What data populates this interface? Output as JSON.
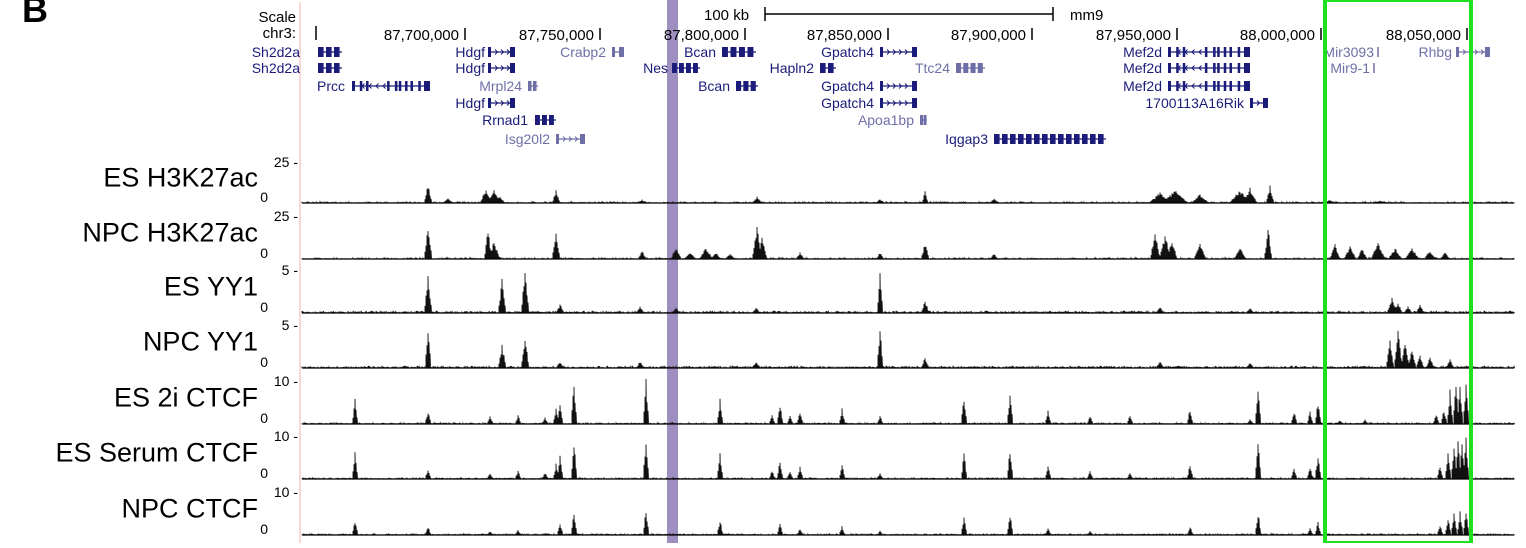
{
  "panel_label": "B",
  "ruler": {
    "scale_label": "Scale",
    "chrom_label": "chr3:",
    "scalebar_label": "100 kb",
    "assembly": "mm9",
    "positions": [
      "87,700,000",
      "87,750,000",
      "87,800,000",
      "87,850,000",
      "87,900,000",
      "87,950,000",
      "88,000,000",
      "88,050,000"
    ]
  },
  "genes": [
    {
      "name": "Sh2d2a",
      "color": "#1b1b7a",
      "row": 0,
      "label_x": 300,
      "gene_x1": 318,
      "gene_x2": 342,
      "shape": "blocks"
    },
    {
      "name": "Sh2d2a",
      "color": "#1b1b7a",
      "row": 1,
      "label_x": 300,
      "gene_x1": 318,
      "gene_x2": 342,
      "shape": "blocks"
    },
    {
      "name": "Prcc",
      "color": "#1b1b7a",
      "row": 2,
      "label_x": 345,
      "gene_x1": 352,
      "gene_x2": 430,
      "shape": "intron"
    },
    {
      "name": "Hdgf",
      "color": "#1b1b7a",
      "row": 0,
      "label_x": 485,
      "gene_x1": 488,
      "gene_x2": 515,
      "shape": "arrow"
    },
    {
      "name": "Hdgf",
      "color": "#1b1b7a",
      "row": 1,
      "label_x": 485,
      "gene_x1": 488,
      "gene_x2": 515,
      "shape": "arrow"
    },
    {
      "name": "Mrpl24",
      "color": "#6f6fa8",
      "row": 2,
      "label_x": 522,
      "gene_x1": 528,
      "gene_x2": 538,
      "shape": "blocks"
    },
    {
      "name": "Hdgf",
      "color": "#1b1b7a",
      "row": 3,
      "label_x": 485,
      "gene_x1": 488,
      "gene_x2": 515,
      "shape": "arrow"
    },
    {
      "name": "Rrnad1",
      "color": "#1b1b7a",
      "row": 4,
      "label_x": 528,
      "gene_x1": 535,
      "gene_x2": 556,
      "shape": "blocks"
    },
    {
      "name": "Isg20l2",
      "color": "#6f6fa8",
      "row": 5,
      "label_x": 550,
      "gene_x1": 556,
      "gene_x2": 585,
      "shape": "arrow"
    },
    {
      "name": "Crabp2",
      "color": "#6f6fa8",
      "row": 0,
      "label_x": 606,
      "gene_x1": 612,
      "gene_x2": 624,
      "shape": "arrow"
    },
    {
      "name": "Nes",
      "color": "#1b1b7a",
      "row": 1,
      "label_x": 668,
      "gene_x1": 672,
      "gene_x2": 700,
      "shape": "blocks"
    },
    {
      "name": "Bcan",
      "color": "#1b1b7a",
      "row": 0,
      "label_x": 716,
      "gene_x1": 722,
      "gene_x2": 756,
      "shape": "blocks"
    },
    {
      "name": "Bcan",
      "color": "#1b1b7a",
      "row": 2,
      "label_x": 730,
      "gene_x1": 736,
      "gene_x2": 758,
      "shape": "blocks"
    },
    {
      "name": "Hapln2",
      "color": "#1b1b7a",
      "row": 1,
      "label_x": 814,
      "gene_x1": 820,
      "gene_x2": 836,
      "shape": "blocks"
    },
    {
      "name": "Gpatch4",
      "color": "#1b1b7a",
      "row": 0,
      "label_x": 874,
      "gene_x1": 880,
      "gene_x2": 917,
      "shape": "arrow"
    },
    {
      "name": "Gpatch4",
      "color": "#1b1b7a",
      "row": 2,
      "label_x": 874,
      "gene_x1": 880,
      "gene_x2": 917,
      "shape": "arrow"
    },
    {
      "name": "Gpatch4",
      "color": "#1b1b7a",
      "row": 3,
      "label_x": 874,
      "gene_x1": 880,
      "gene_x2": 917,
      "shape": "arrow"
    },
    {
      "name": "Apoa1bp",
      "color": "#6f6fa8",
      "row": 4,
      "label_x": 914,
      "gene_x1": 920,
      "gene_x2": 927,
      "shape": "blocks"
    },
    {
      "name": "Ttc24",
      "color": "#6f6fa8",
      "row": 1,
      "label_x": 950,
      "gene_x1": 956,
      "gene_x2": 985,
      "shape": "blocks"
    },
    {
      "name": "Iqgap3",
      "color": "#1b1b7a",
      "row": 5,
      "label_x": 988,
      "gene_x1": 994,
      "gene_x2": 1106,
      "shape": "blocks"
    },
    {
      "name": "Mef2d",
      "color": "#1b1b7a",
      "row": 0,
      "label_x": 1162,
      "gene_x1": 1168,
      "gene_x2": 1250,
      "shape": "intron"
    },
    {
      "name": "Mef2d",
      "color": "#1b1b7a",
      "row": 1,
      "label_x": 1162,
      "gene_x1": 1168,
      "gene_x2": 1250,
      "shape": "intron"
    },
    {
      "name": "Mef2d",
      "color": "#1b1b7a",
      "row": 2,
      "label_x": 1162,
      "gene_x1": 1168,
      "gene_x2": 1250,
      "shape": "intron"
    },
    {
      "name": "1700113A16Rik",
      "color": "#1b1b7a",
      "row": 3,
      "label_x": 1244,
      "gene_x1": 1250,
      "gene_x2": 1268,
      "shape": "arrow"
    },
    {
      "name": "Mir3093",
      "color": "#6f6fa8",
      "row": 0,
      "label_x": 1374,
      "gene_x1": 1378,
      "gene_x2": 1380,
      "shape": "tick"
    },
    {
      "name": "Mir9-1",
      "color": "#6f6fa8",
      "row": 1,
      "label_x": 1370,
      "gene_x1": 1374,
      "gene_x2": 1376,
      "shape": "tick"
    },
    {
      "name": "Rhbg",
      "color": "#6f6fa8",
      "row": 0,
      "label_x": 1452,
      "gene_x1": 1456,
      "gene_x2": 1490,
      "shape": "arrow"
    }
  ],
  "tracks": [
    {
      "name": "ES H3K27ac",
      "max_label": "25 -",
      "zero_label": "0"
    },
    {
      "name": "NPC H3K27ac",
      "max_label": "25 -",
      "zero_label": "0"
    },
    {
      "name": "ES YY1",
      "max_label": "5 -",
      "zero_label": "0"
    },
    {
      "name": "NPC YY1",
      "max_label": "5 -",
      "zero_label": "0"
    },
    {
      "name": "ES 2i CTCF",
      "max_label": "10 -",
      "zero_label": "0"
    },
    {
      "name": "ES Serum CTCF",
      "max_label": "10 -",
      "zero_label": "0"
    },
    {
      "name": "NPC CTCF",
      "max_label": "10 -",
      "zero_label": "0"
    }
  ],
  "highlights": {
    "purple_color": "#8e7ab5",
    "green_color": "#1fe01f"
  }
}
